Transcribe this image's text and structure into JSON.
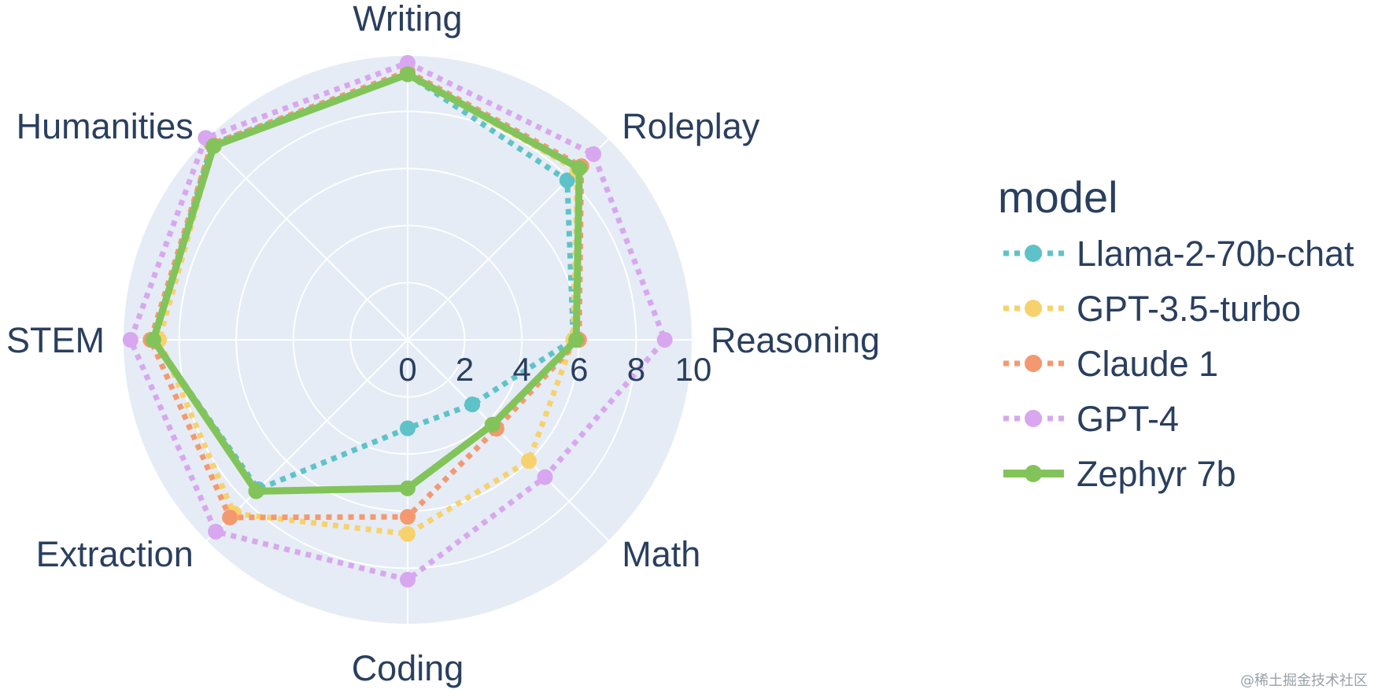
{
  "chart_data": {
    "type": "radar",
    "categories": [
      "Writing",
      "Roleplay",
      "Reasoning",
      "Math",
      "Coding",
      "Extraction",
      "STEM",
      "Humanities"
    ],
    "radial_ticks": [
      "0",
      "2",
      "4",
      "6",
      "8",
      "10"
    ],
    "rlim": [
      0,
      10
    ],
    "legend_title": "model",
    "legend_position": "right",
    "series": [
      {
        "name": "Llama-2-70b-chat",
        "color": "#5ec3c8",
        "dash": "dotted",
        "values": [
          9.3,
          7.9,
          5.8,
          3.2,
          3.1,
          7.4,
          8.9,
          9.7
        ]
      },
      {
        "name": "GPT-3.5-turbo",
        "color": "#f7d26c",
        "dash": "dotted",
        "values": [
          9.3,
          8.4,
          5.8,
          6.0,
          6.8,
          8.6,
          8.7,
          9.6
        ]
      },
      {
        "name": "Claude 1",
        "color": "#f4996f",
        "dash": "dotted",
        "values": [
          9.4,
          8.6,
          6.0,
          4.4,
          6.2,
          8.8,
          9.0,
          9.7
        ]
      },
      {
        "name": "GPT-4",
        "color": "#d8a7ef",
        "dash": "dotted",
        "values": [
          9.7,
          9.2,
          9.0,
          6.8,
          8.4,
          9.5,
          9.7,
          10.0
        ]
      },
      {
        "name": "Zephyr 7b",
        "color": "#82c45a",
        "dash": "solid",
        "values": [
          9.3,
          8.5,
          5.9,
          4.2,
          5.2,
          7.5,
          8.9,
          9.6
        ]
      }
    ]
  },
  "watermark": "@稀土掘金技术社区"
}
